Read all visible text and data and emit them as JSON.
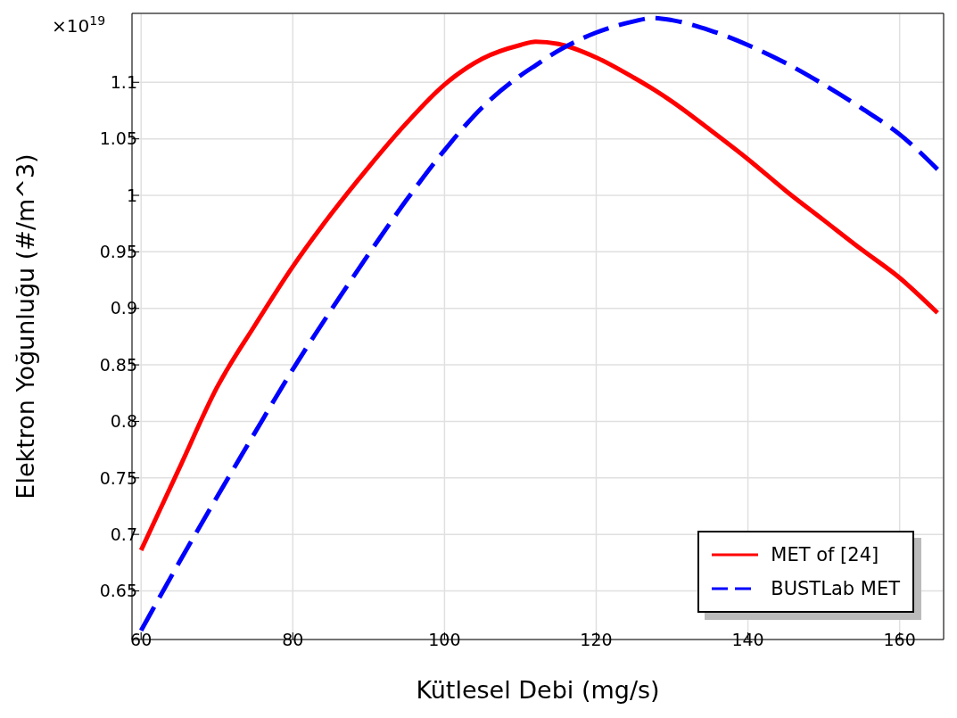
{
  "chart_data": {
    "type": "line",
    "xlabel": "Kütlesel Debi (mg/s)",
    "ylabel": "Elektron Yoğunluğu (#/m^3)",
    "annotations": [
      "×10$^{19}$"
    ],
    "x": [
      60,
      65,
      70,
      75,
      80,
      85,
      90,
      95,
      100,
      105,
      110,
      112,
      115,
      120,
      125,
      127.5,
      130,
      135,
      140,
      145,
      150,
      155,
      160,
      165
    ],
    "series": [
      {
        "name": "MET of [24]",
        "color": "#ff0000",
        "line_style": "solid",
        "values": [
          0.686,
          0.758,
          0.83,
          0.885,
          0.937,
          0.983,
          1.025,
          1.064,
          1.098,
          1.121,
          1.133,
          1.136,
          1.134,
          1.122,
          1.104,
          1.094,
          1.083,
          1.058,
          1.032,
          1.004,
          0.978,
          0.952,
          0.927,
          0.896
        ]
      },
      {
        "name": "BUSTLab MET",
        "color": "#0000ff",
        "line_style": "dashed",
        "values": [
          0.615,
          0.675,
          0.733,
          0.79,
          0.846,
          0.898,
          0.948,
          0.996,
          1.04,
          1.078,
          1.106,
          1.115,
          1.128,
          1.144,
          1.154,
          1.157,
          1.155,
          1.146,
          1.133,
          1.117,
          1.098,
          1.077,
          1.054,
          1.023
        ]
      }
    ],
    "xlim": [
      58.8,
      165.8
    ],
    "xticks": [
      60,
      80,
      100,
      120,
      140,
      160
    ],
    "ylim": [
      0.607,
      1.161
    ],
    "yticks": [
      0.65,
      0.7,
      0.75,
      0.8,
      0.85,
      0.9,
      0.95,
      1,
      1.05,
      1.1
    ],
    "grid": true,
    "legend": "bottom right",
    "marker": "none"
  }
}
